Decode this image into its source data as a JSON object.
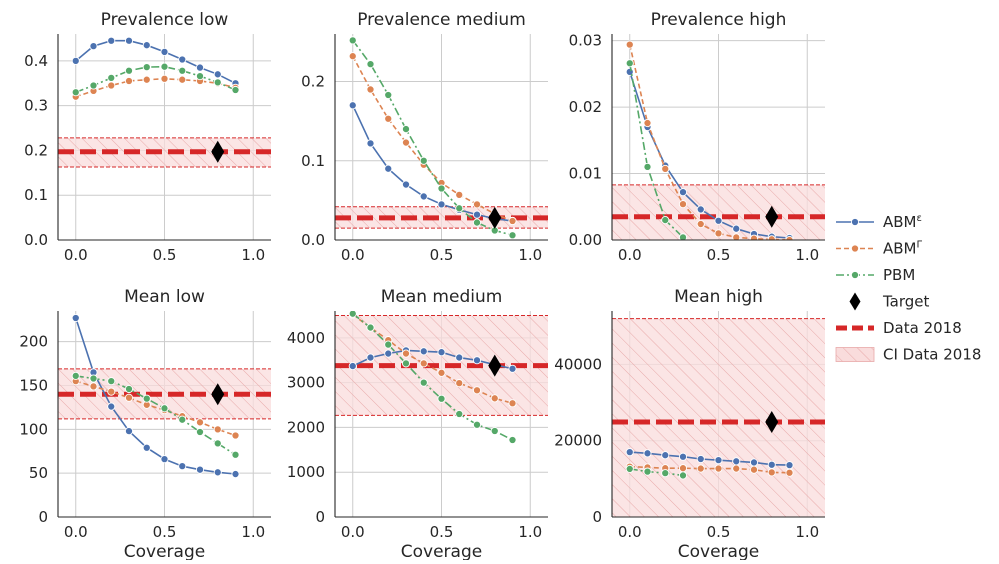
{
  "colors": {
    "abm_eps": "#4c72b0",
    "abm_gamma": "#dd8452",
    "pbm": "#55a868",
    "data": "#d62728",
    "ci_fill": "#f9dcdc",
    "grid": "#cccccc"
  },
  "legend": {
    "placement": "right",
    "items": [
      {
        "key": "abm_eps",
        "base": "ABM",
        "sup": "ε",
        "marker": "line-dot"
      },
      {
        "key": "abm_gamma",
        "base": "ABM",
        "sup": "Γ",
        "marker": "line-dot-dash"
      },
      {
        "key": "pbm",
        "base": "PBM",
        "sup": "",
        "marker": "line-dot-dashdot"
      },
      {
        "key": "target",
        "base": "Target",
        "sup": "",
        "marker": "diamond"
      },
      {
        "key": "data",
        "base": "Data 2018",
        "sup": "",
        "marker": "thick-dash"
      },
      {
        "key": "ci",
        "base": "CI Data 2018",
        "sup": "",
        "marker": "hatched-box"
      }
    ]
  },
  "chart_data": [
    {
      "type": "line",
      "title": "Prevalence low",
      "xlabel": "",
      "xlim": [
        -0.1,
        1.1
      ],
      "ylim": [
        0,
        0.46
      ],
      "xticks": [
        0.0,
        0.5,
        1.0
      ],
      "xtick_labels": [
        "0.0",
        "0.5",
        "1.0"
      ],
      "yticks": [
        0,
        0.1,
        0.2,
        0.3,
        0.4
      ],
      "ytick_labels": [
        "0.0",
        "0.1",
        "0.2",
        "0.3",
        "0.4"
      ],
      "x": [
        0.0,
        0.1,
        0.2,
        0.3,
        0.4,
        0.5,
        0.6,
        0.7,
        0.8,
        0.9
      ],
      "series": [
        {
          "name": "ABM^ε",
          "key": "abm_eps",
          "x": [
            0.0,
            0.1,
            0.2,
            0.3,
            0.4,
            0.5,
            0.6,
            0.7,
            0.8,
            0.9
          ],
          "values": [
            0.4,
            0.433,
            0.445,
            0.445,
            0.435,
            0.42,
            0.403,
            0.385,
            0.37,
            0.35
          ]
        },
        {
          "name": "ABM^Γ",
          "key": "abm_gamma",
          "x": [
            0.0,
            0.1,
            0.2,
            0.3,
            0.4,
            0.5,
            0.6,
            0.7,
            0.8,
            0.9
          ],
          "values": [
            0.32,
            0.333,
            0.345,
            0.355,
            0.358,
            0.36,
            0.358,
            0.355,
            0.35,
            0.34
          ]
        },
        {
          "name": "PBM",
          "key": "pbm",
          "x": [
            0.0,
            0.1,
            0.2,
            0.3,
            0.4,
            0.5,
            0.6,
            0.7,
            0.8,
            0.9
          ],
          "values": [
            0.33,
            0.345,
            0.362,
            0.378,
            0.386,
            0.387,
            0.378,
            0.366,
            0.352,
            0.335
          ]
        }
      ],
      "data_2018": 0.197,
      "ci": [
        0.163,
        0.228
      ],
      "target": {
        "x": 0.8,
        "y": 0.197
      }
    },
    {
      "type": "line",
      "title": "Prevalence medium",
      "xlabel": "",
      "xlim": [
        -0.1,
        1.1
      ],
      "ylim": [
        0,
        0.26
      ],
      "xticks": [
        0.0,
        0.5,
        1.0
      ],
      "xtick_labels": [
        "0.0",
        "0.5",
        "1.0"
      ],
      "yticks": [
        0,
        0.1,
        0.2
      ],
      "ytick_labels": [
        "0.0",
        "0.1",
        "0.2"
      ],
      "series": [
        {
          "name": "ABM^ε",
          "key": "abm_eps",
          "x": [
            0.0,
            0.1,
            0.2,
            0.3,
            0.4,
            0.5,
            0.6,
            0.7,
            0.8,
            0.9
          ],
          "values": [
            0.17,
            0.122,
            0.09,
            0.07,
            0.055,
            0.045,
            0.038,
            0.032,
            0.027,
            0.024
          ]
        },
        {
          "name": "ABM^Γ",
          "key": "abm_gamma",
          "x": [
            0.0,
            0.1,
            0.2,
            0.3,
            0.4,
            0.5,
            0.6,
            0.7,
            0.8,
            0.9
          ],
          "values": [
            0.232,
            0.19,
            0.153,
            0.123,
            0.095,
            0.072,
            0.057,
            0.045,
            0.033,
            0.024
          ]
        },
        {
          "name": "PBM",
          "key": "pbm",
          "x": [
            0.0,
            0.1,
            0.2,
            0.3,
            0.4,
            0.5,
            0.6,
            0.7,
            0.8,
            0.9
          ],
          "values": [
            0.252,
            0.222,
            0.183,
            0.14,
            0.1,
            0.065,
            0.04,
            0.022,
            0.012,
            0.006
          ]
        }
      ],
      "data_2018": 0.028,
      "ci": [
        0.015,
        0.042
      ],
      "target": {
        "x": 0.8,
        "y": 0.028
      }
    },
    {
      "type": "line",
      "title": "Prevalence high",
      "xlabel": "",
      "xlim": [
        -0.1,
        1.1
      ],
      "ylim": [
        0,
        0.031
      ],
      "xticks": [
        0.0,
        0.5,
        1.0
      ],
      "xtick_labels": [
        "0.0",
        "0.5",
        "1.0"
      ],
      "yticks": [
        0,
        0.01,
        0.02,
        0.03
      ],
      "ytick_labels": [
        "0.00",
        "0.01",
        "0.02",
        "0.03"
      ],
      "series": [
        {
          "name": "ABM^ε",
          "key": "abm_eps",
          "x": [
            0.0,
            0.1,
            0.2,
            0.3,
            0.4,
            0.5,
            0.6,
            0.7,
            0.8,
            0.9
          ],
          "values": [
            0.0253,
            0.017,
            0.0112,
            0.0072,
            0.0046,
            0.0029,
            0.0017,
            0.0009,
            0.0005,
            0.0003
          ]
        },
        {
          "name": "ABM^Γ",
          "key": "abm_gamma",
          "x": [
            0.0,
            0.1,
            0.2,
            0.3,
            0.4,
            0.5,
            0.6,
            0.7,
            0.8,
            0.9
          ],
          "values": [
            0.0294,
            0.0176,
            0.0107,
            0.0054,
            0.0024,
            0.001,
            0.0004,
            0.0002,
            0.0001,
            0.0
          ]
        },
        {
          "name": "PBM",
          "key": "pbm",
          "x": [
            0.0,
            0.1,
            0.2,
            0.3
          ],
          "values": [
            0.0266,
            0.011,
            0.003,
            0.0004
          ]
        }
      ],
      "data_2018": 0.0035,
      "ci": [
        0.0,
        0.0083
      ],
      "target": {
        "x": 0.8,
        "y": 0.0035
      }
    },
    {
      "type": "line",
      "title": "Mean low",
      "xlabel": "Coverage",
      "xlim": [
        -0.1,
        1.1
      ],
      "ylim": [
        0,
        235
      ],
      "xticks": [
        0.0,
        0.5,
        1.0
      ],
      "xtick_labels": [
        "0.0",
        "0.5",
        "1.0"
      ],
      "yticks": [
        0,
        50,
        100,
        150,
        200
      ],
      "ytick_labels": [
        "0",
        "50",
        "100",
        "150",
        "200"
      ],
      "series": [
        {
          "name": "ABM^ε",
          "key": "abm_eps",
          "x": [
            0.0,
            0.1,
            0.2,
            0.3,
            0.4,
            0.5,
            0.6,
            0.7,
            0.8,
            0.9
          ],
          "values": [
            227,
            165,
            126,
            98,
            79,
            66,
            58,
            54,
            51,
            49
          ]
        },
        {
          "name": "ABM^Γ",
          "key": "abm_gamma",
          "x": [
            0.0,
            0.1,
            0.2,
            0.3,
            0.4,
            0.5,
            0.6,
            0.7,
            0.8,
            0.9
          ],
          "values": [
            155,
            149,
            143,
            136,
            128,
            122,
            115,
            108,
            100,
            93
          ]
        },
        {
          "name": "PBM",
          "key": "pbm",
          "x": [
            0.0,
            0.1,
            0.2,
            0.3,
            0.4,
            0.5,
            0.6,
            0.7,
            0.8,
            0.9
          ],
          "values": [
            161,
            158,
            155,
            146,
            135,
            124,
            111,
            97,
            84,
            71
          ]
        }
      ],
      "data_2018": 140,
      "ci": [
        112,
        169
      ],
      "target": {
        "x": 0.8,
        "y": 140
      }
    },
    {
      "type": "line",
      "title": "Mean medium",
      "xlabel": "Coverage",
      "xlim": [
        -0.1,
        1.1
      ],
      "ylim": [
        0,
        4600
      ],
      "xticks": [
        0.0,
        0.5,
        1.0
      ],
      "xtick_labels": [
        "0.0",
        "0.5",
        "1.0"
      ],
      "yticks": [
        0,
        1000,
        2000,
        3000,
        4000
      ],
      "ytick_labels": [
        "0",
        "1000",
        "2000",
        "3000",
        "4000"
      ],
      "series": [
        {
          "name": "ABM^ε",
          "key": "abm_eps",
          "x": [
            0.0,
            0.1,
            0.2,
            0.3,
            0.4,
            0.5,
            0.6,
            0.7,
            0.8,
            0.9
          ],
          "values": [
            3370,
            3560,
            3650,
            3720,
            3700,
            3680,
            3560,
            3500,
            3400,
            3310
          ]
        },
        {
          "name": "ABM^Γ",
          "key": "abm_gamma",
          "x": [
            0.0,
            0.1,
            0.2,
            0.3,
            0.4,
            0.5,
            0.6,
            0.7,
            0.8,
            0.9
          ],
          "values": [
            4520,
            4230,
            3950,
            3650,
            3430,
            3220,
            2990,
            2830,
            2650,
            2540
          ]
        },
        {
          "name": "PBM",
          "key": "pbm",
          "x": [
            0.0,
            0.1,
            0.2,
            0.3,
            0.4,
            0.5,
            0.6,
            0.7,
            0.8,
            0.9
          ],
          "values": [
            4540,
            4230,
            3850,
            3430,
            3000,
            2640,
            2300,
            2060,
            1920,
            1720
          ]
        }
      ],
      "data_2018": 3380,
      "ci": [
        2270,
        4500
      ],
      "target": {
        "x": 0.8,
        "y": 3380
      }
    },
    {
      "type": "line",
      "title": "Mean high",
      "xlabel": "Coverage",
      "xlim": [
        -0.1,
        1.1
      ],
      "ylim": [
        0,
        54000
      ],
      "xticks": [
        0.0,
        0.5,
        1.0
      ],
      "xtick_labels": [
        "0.0",
        "0.5",
        "1.0"
      ],
      "yticks": [
        0,
        20000,
        40000
      ],
      "ytick_labels": [
        "0",
        "20000",
        "40000"
      ],
      "series": [
        {
          "name": "ABM^ε",
          "key": "abm_eps",
          "x": [
            0.0,
            0.1,
            0.2,
            0.3,
            0.4,
            0.5,
            0.6,
            0.7,
            0.8,
            0.9
          ],
          "values": [
            17000,
            16700,
            16200,
            15800,
            15200,
            14900,
            14600,
            14300,
            13700,
            13600
          ]
        },
        {
          "name": "ABM^Γ",
          "key": "abm_gamma",
          "x": [
            0.0,
            0.1,
            0.2,
            0.3,
            0.4,
            0.5,
            0.6,
            0.7,
            0.8,
            0.9
          ],
          "values": [
            13200,
            13000,
            12800,
            12800,
            12700,
            12700,
            12700,
            12400,
            11700,
            11600
          ]
        },
        {
          "name": "PBM",
          "key": "pbm",
          "x": [
            0.0,
            0.1,
            0.2,
            0.3
          ],
          "values": [
            12600,
            11900,
            11500,
            10900
          ]
        }
      ],
      "data_2018": 24900,
      "ci": [
        0,
        52000
      ],
      "target": {
        "x": 0.8,
        "y": 24900
      }
    }
  ]
}
